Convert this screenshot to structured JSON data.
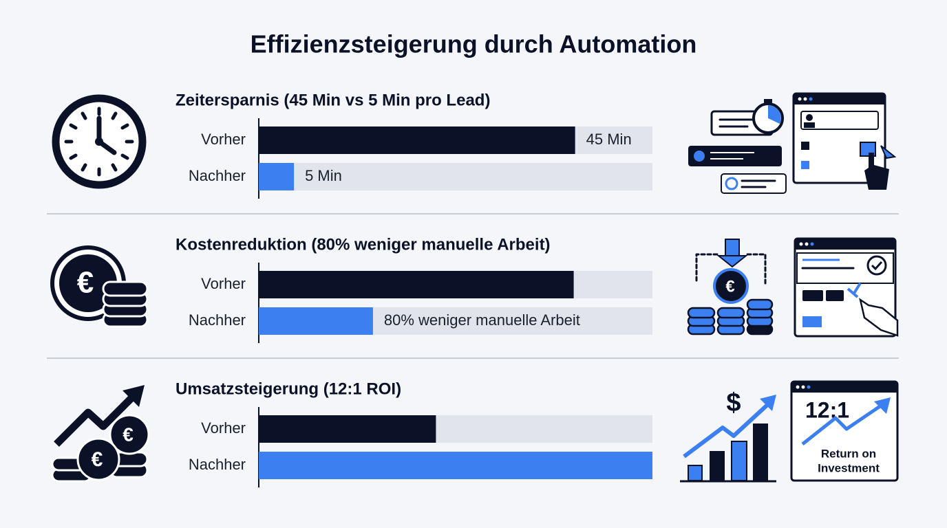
{
  "title": "Effizienzsteigerung durch Automation",
  "chart_data": [
    {
      "type": "bar",
      "orientation": "horizontal",
      "title": "Zeitersparnis (45 Min vs 5 Min pro Lead)",
      "categories": [
        "Vorher",
        "Nachher"
      ],
      "values": [
        45,
        5
      ],
      "value_labels": [
        "45 Min",
        "5 Min"
      ],
      "colors": [
        "#0b1228",
        "#3b7ff0"
      ],
      "xlim": [
        0,
        56
      ]
    },
    {
      "type": "bar",
      "orientation": "horizontal",
      "title": "Kostenreduktion (80% weniger manuelle Arbeit)",
      "categories": [
        "Vorher",
        "Nachher"
      ],
      "values": [
        80,
        29
      ],
      "annotation": "80% weniger manuelle Arbeit",
      "colors": [
        "#0b1228",
        "#3b7ff0"
      ],
      "xlim": [
        0,
        100
      ]
    },
    {
      "type": "bar",
      "orientation": "horizontal",
      "title": "Umsatzsteigerung (12:1 ROI)",
      "categories": [
        "Vorher",
        "Nachher"
      ],
      "values": [
        45,
        100
      ],
      "colors": [
        "#0b1228",
        "#3b7ff0"
      ],
      "xlim": [
        0,
        100
      ]
    }
  ],
  "icons": {
    "euro": "€",
    "dollar": "$",
    "roi_ratio": "12:1",
    "roi_caption_1": "Return on",
    "roi_caption_2": "Investment"
  }
}
